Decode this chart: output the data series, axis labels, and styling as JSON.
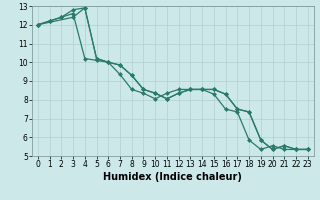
{
  "xlabel": "Humidex (Indice chaleur)",
  "bg_color": "#cce8e8",
  "grid_color_major": "#b0d0d0",
  "grid_color_minor": "#c8e4e4",
  "line_color": "#2a7a6a",
  "xlim": [
    -0.5,
    23.5
  ],
  "ylim": [
    5,
    13
  ],
  "yticks": [
    5,
    6,
    7,
    8,
    9,
    10,
    11,
    12,
    13
  ],
  "xticks": [
    0,
    1,
    2,
    3,
    4,
    5,
    6,
    7,
    8,
    9,
    10,
    11,
    12,
    13,
    14,
    15,
    16,
    17,
    18,
    19,
    20,
    21,
    22,
    23
  ],
  "line1_x": [
    0,
    1,
    2,
    3,
    4,
    5,
    6,
    7,
    8,
    9,
    10,
    11,
    12,
    13,
    14,
    15,
    16,
    17,
    18,
    19,
    20,
    21,
    22,
    23
  ],
  "line1_y": [
    12.0,
    12.2,
    12.4,
    12.8,
    12.9,
    10.2,
    10.0,
    9.85,
    9.3,
    8.55,
    8.35,
    8.05,
    8.35,
    8.55,
    8.55,
    8.55,
    8.3,
    7.5,
    7.35,
    5.85,
    5.35,
    5.55,
    5.35,
    5.35
  ],
  "line2_x": [
    0,
    1,
    2,
    3,
    4,
    5,
    6,
    7,
    8,
    9,
    10,
    11,
    12,
    13,
    14,
    15,
    16,
    17,
    18,
    19,
    20,
    21,
    22,
    23
  ],
  "line2_y": [
    12.0,
    12.2,
    12.4,
    12.6,
    10.2,
    10.1,
    10.0,
    9.35,
    8.55,
    8.35,
    8.05,
    8.35,
    8.55,
    8.55,
    8.55,
    8.3,
    7.5,
    7.35,
    5.85,
    5.35,
    5.55,
    5.35,
    5.35,
    5.35
  ],
  "line3_x": [
    0,
    3,
    4,
    5,
    6,
    7,
    8,
    9,
    10,
    11,
    12,
    13,
    14,
    15,
    16,
    17,
    18,
    19,
    20,
    21,
    22,
    23
  ],
  "line3_y": [
    12.0,
    12.4,
    12.9,
    10.2,
    10.0,
    9.85,
    9.3,
    8.55,
    8.35,
    8.05,
    8.35,
    8.55,
    8.55,
    8.55,
    8.3,
    7.5,
    7.35,
    5.85,
    5.35,
    5.55,
    5.35,
    5.35
  ],
  "marker_size": 2.5,
  "line_width": 0.9,
  "tick_fontsize": 5.5,
  "xlabel_fontsize": 7
}
